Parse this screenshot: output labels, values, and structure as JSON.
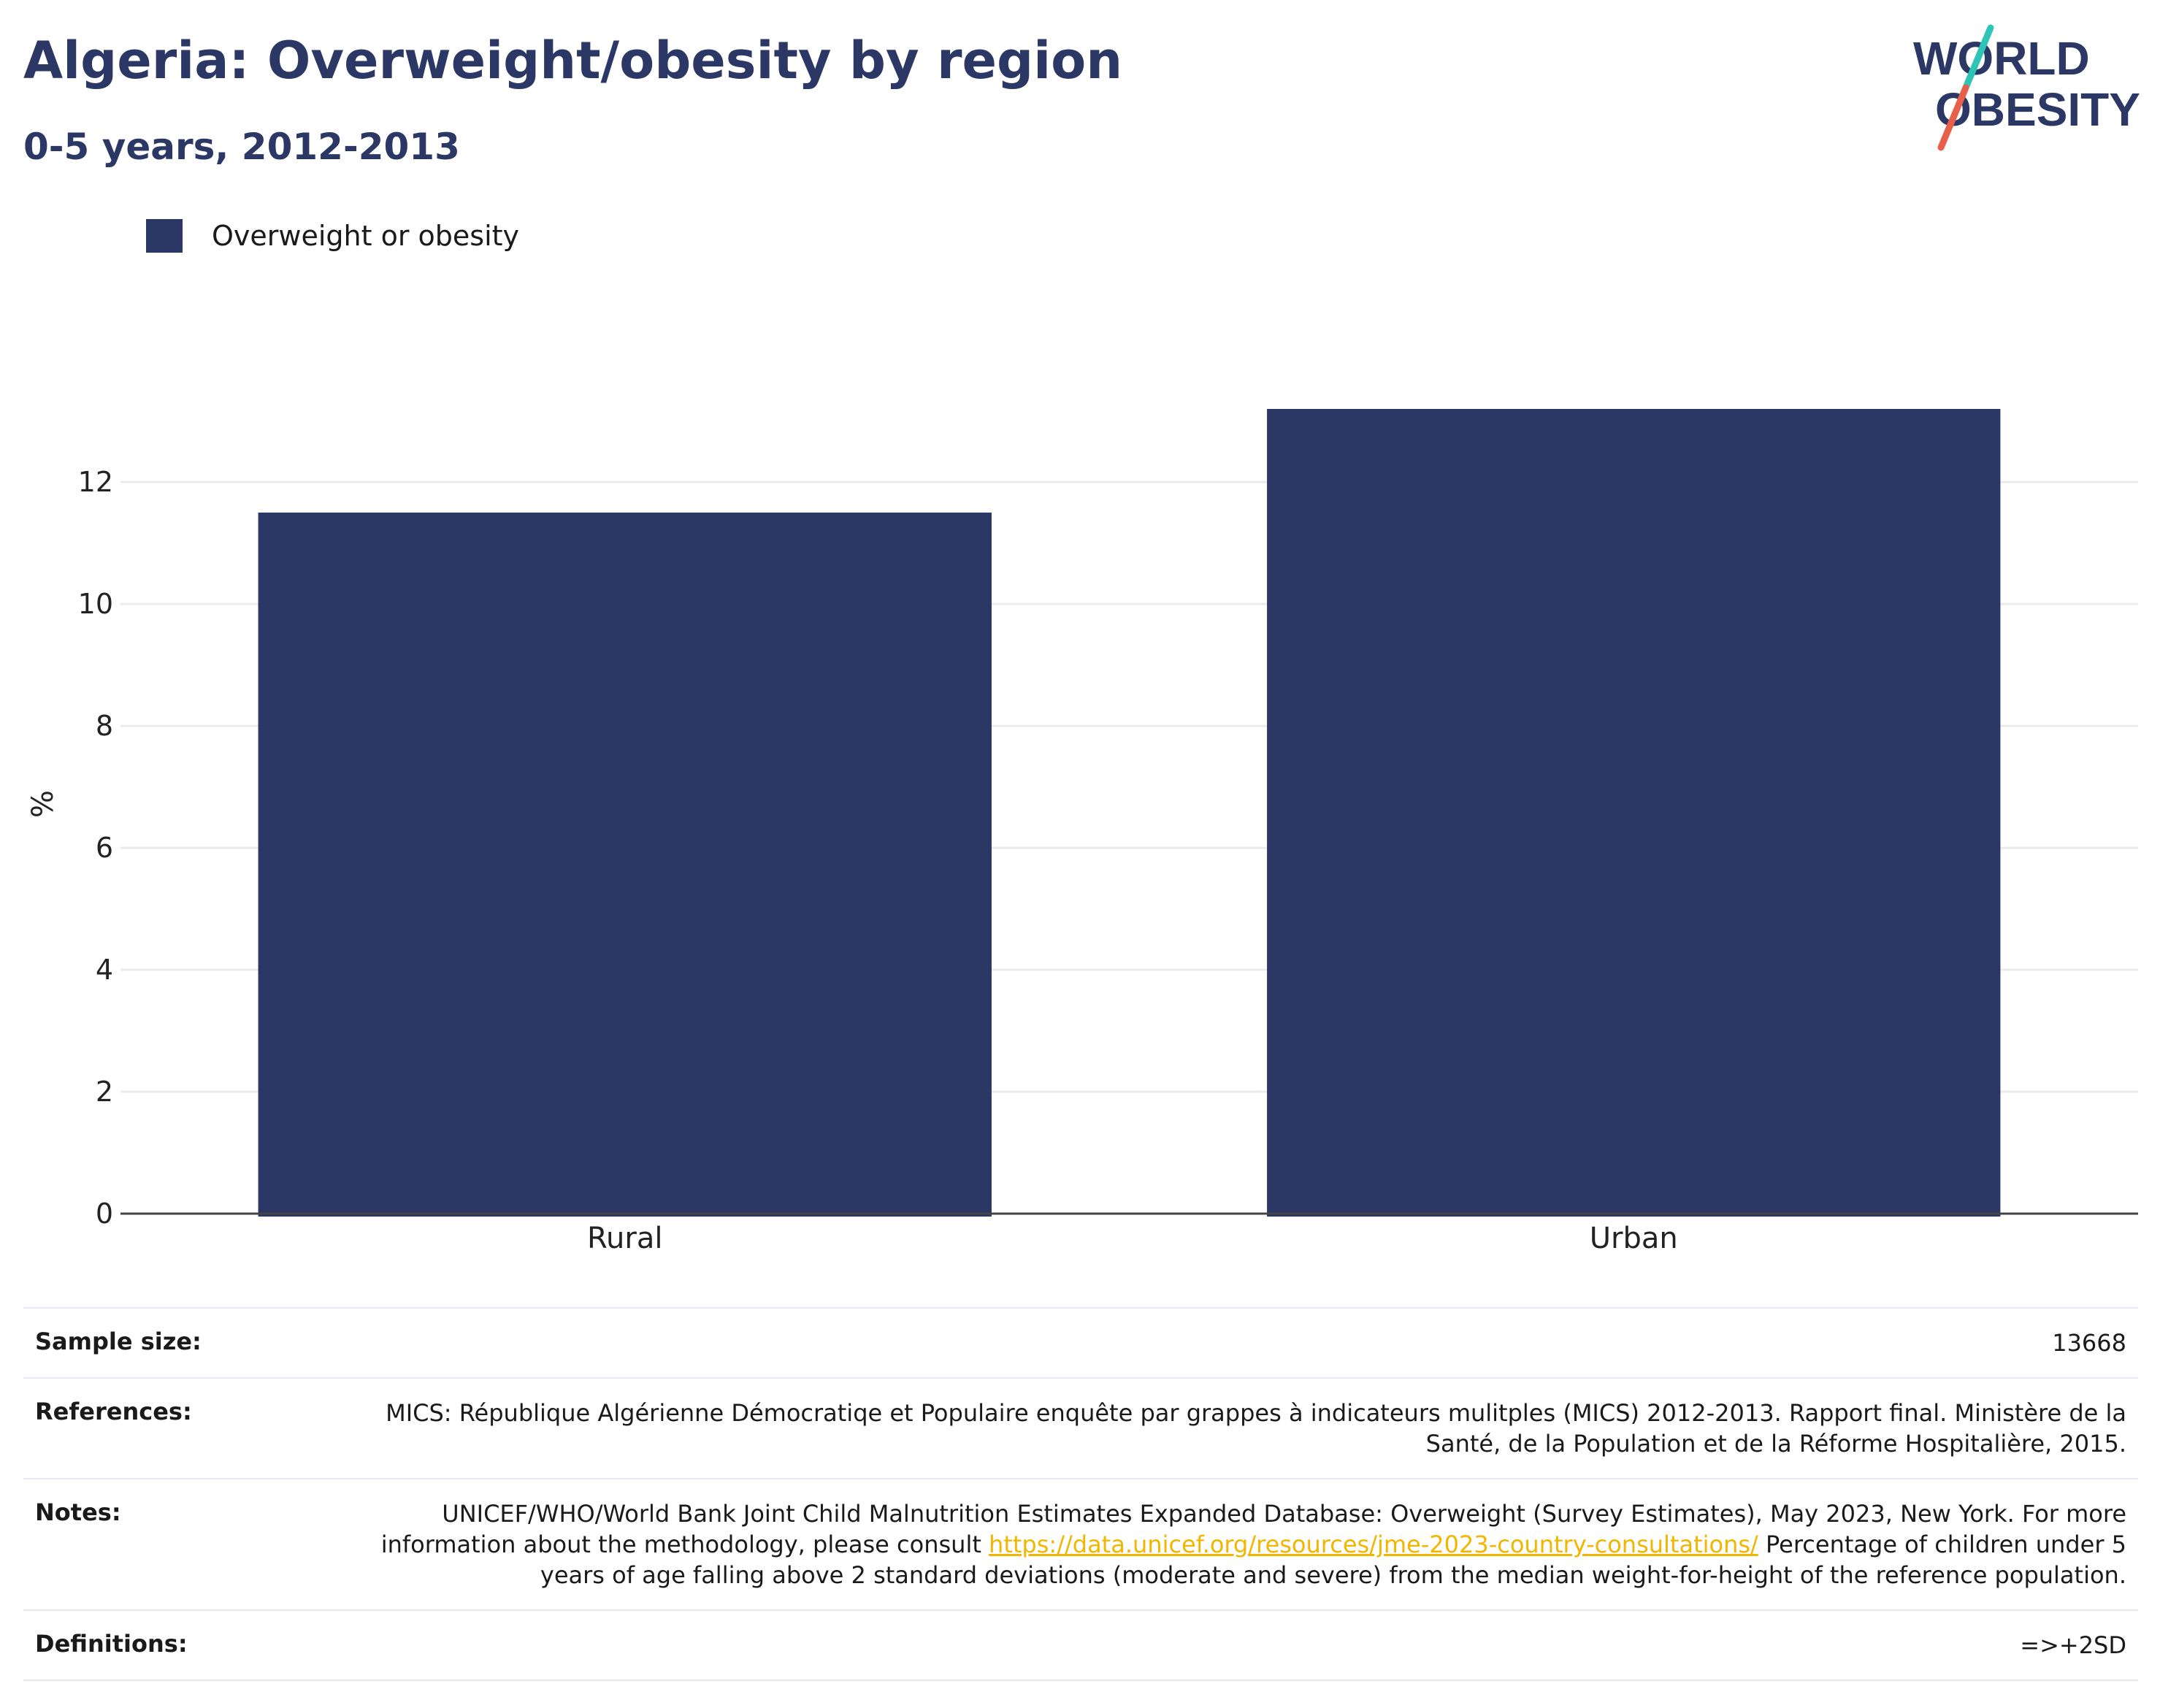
{
  "title": "Algeria: Overweight/obesity by region",
  "subtitle": "0-5 years, 2012-2013",
  "logo": {
    "line1": "WORLD",
    "line2": "OBESITY"
  },
  "colors": {
    "title": "#2b3764",
    "bar": "#2b3764",
    "grid": "#ebebeb",
    "axis": "#444444",
    "link": "#f2b600",
    "logo_teal": "#2ec4b6",
    "logo_coral": "#e8604c"
  },
  "chart_data": {
    "type": "bar",
    "categories": [
      "Rural",
      "Urban"
    ],
    "series": [
      {
        "name": "Overweight or obesity",
        "values": [
          11.5,
          13.2
        ]
      }
    ],
    "title": "",
    "xlabel": "",
    "ylabel": "%",
    "ylim": [
      0,
      13.2
    ],
    "yticks": [
      0,
      2,
      4,
      6,
      8,
      10,
      12
    ],
    "grid": true,
    "legend": "top-left"
  },
  "meta": {
    "sample_size": {
      "label": "Sample size:",
      "value": "13668"
    },
    "references": {
      "label": "References:",
      "value": "MICS: République Algérienne Démocratiqe et Populaire enquête par grappes à indicateurs mulitples (MICS) 2012-2013. Rapport final. Ministère de la Santé, de la Population et de la Réforme Hospitalière, 2015."
    },
    "notes": {
      "label": "Notes:",
      "text_before": "UNICEF/WHO/World Bank Joint Child Malnutrition Estimates Expanded Database: Overweight (Survey Estimates), May 2023, New York. For more information about the methodology, please consult ",
      "link": "https://data.unicef.org/resources/jme-2023-country-consultations/",
      "text_after": " Percentage of children under 5 years of age falling above 2 standard deviations (moderate and severe) from the median weight-for-height of the reference population."
    },
    "definitions": {
      "label": "Definitions:",
      "value": "=>+2SD"
    }
  }
}
